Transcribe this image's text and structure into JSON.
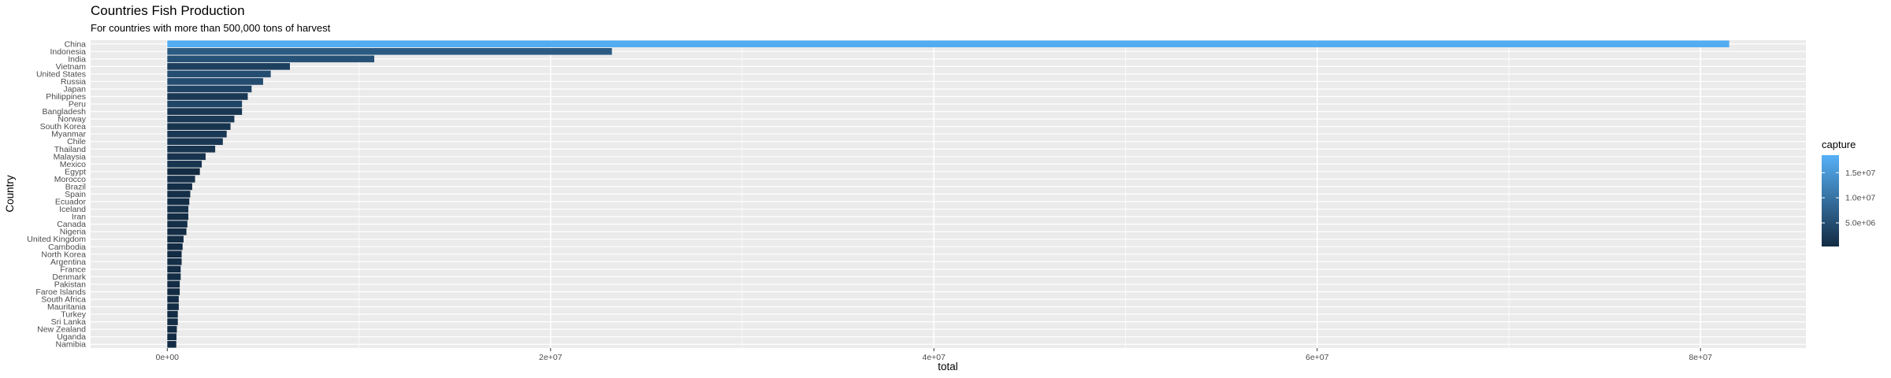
{
  "chart_data": {
    "type": "bar",
    "orientation": "horizontal",
    "title": "Countries Fish Production",
    "subtitle": "For countries with more than 500,000 tons of harvest",
    "xlabel": "total",
    "ylabel": "Country",
    "xlim": [
      -4000000,
      85500000
    ],
    "x_ticks": [
      0,
      20000000,
      40000000,
      60000000,
      80000000
    ],
    "x_tick_labels": [
      "0e+00",
      "2e+07",
      "4e+07",
      "6e+07",
      "8e+07"
    ],
    "grid": true,
    "categories": [
      "China",
      "Indonesia",
      "India",
      "Vietnam",
      "United States",
      "Russia",
      "Japan",
      "Philippines",
      "Peru",
      "Bangladesh",
      "Norway",
      "South Korea",
      "Myanmar",
      "Chile",
      "Thailand",
      "Malaysia",
      "Mexico",
      "Egypt",
      "Morocco",
      "Brazil",
      "Spain",
      "Ecuador",
      "Iceland",
      "Iran",
      "Canada",
      "Nigeria",
      "United Kingdom",
      "Cambodia",
      "North Korea",
      "Argentina",
      "France",
      "Denmark",
      "Pakistan",
      "Faroe Islands",
      "South Africa",
      "Mauritania",
      "Turkey",
      "Sri Lanka",
      "New Zealand",
      "Uganda",
      "Namibia"
    ],
    "values": [
      81500000,
      23200000,
      10800000,
      6400000,
      5400000,
      5000000,
      4400000,
      4200000,
      3900000,
      3900000,
      3500000,
      3300000,
      3100000,
      2900000,
      2500000,
      2000000,
      1800000,
      1700000,
      1450000,
      1300000,
      1200000,
      1150000,
      1100000,
      1100000,
      1050000,
      1000000,
      850000,
      800000,
      750000,
      750000,
      700000,
      700000,
      650000,
      650000,
      600000,
      600000,
      550000,
      550000,
      500000,
      480000,
      470000
    ],
    "fill_variable": {
      "name": "capture",
      "values": [
        17800000,
        6800000,
        5500000,
        3000000,
        5000000,
        4900000,
        3600000,
        2000000,
        3900000,
        1800000,
        2200000,
        1500000,
        2000000,
        2100000,
        1600000,
        1450000,
        1600000,
        350000,
        1400000,
        700000,
        900000,
        700000,
        1050000,
        650000,
        850000,
        750000,
        650000,
        550000,
        300000,
        800000,
        500000,
        650000,
        500000,
        400000,
        600000,
        600000,
        330000,
        520000,
        420000,
        400000,
        470000
      ],
      "legend_title": "capture",
      "legend_breaks": [
        5000000,
        10000000,
        15000000
      ],
      "legend_labels": [
        "5.0e+06",
        "1.0e+07",
        "1.5e+07"
      ],
      "range": [
        300000,
        18500000
      ],
      "color_low": "#132B43",
      "color_high": "#56B1F7"
    },
    "legend_position": "right",
    "panel_background": "#ebebeb",
    "grid_color": "#ffffff"
  }
}
